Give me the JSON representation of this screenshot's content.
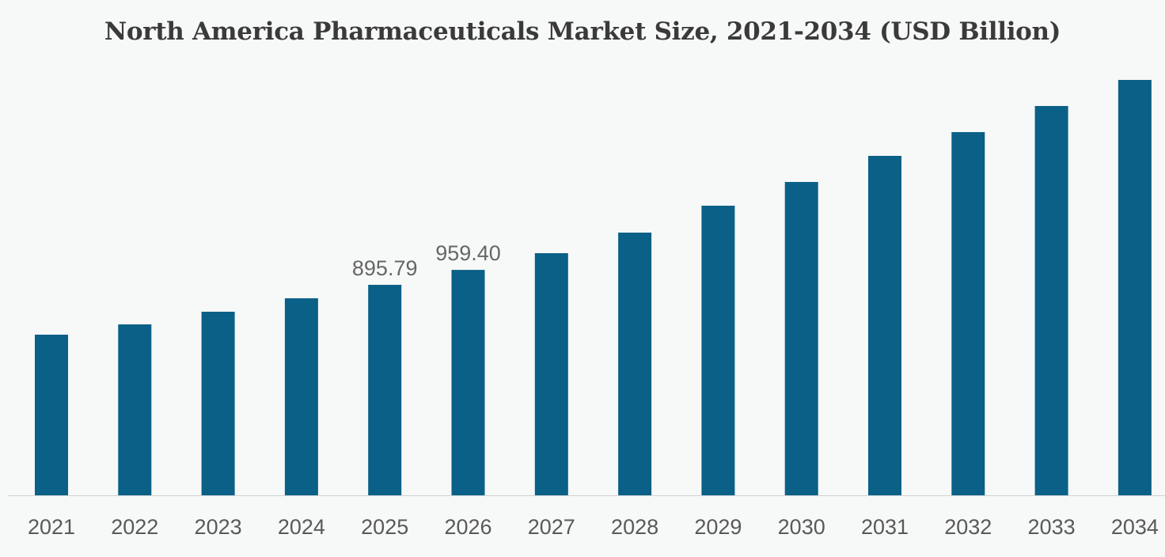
{
  "chart_data": {
    "type": "bar",
    "title": "North America Pharmaceuticals Market Size, 2021-2034 (USD Billion)",
    "xlabel": "",
    "ylabel": "",
    "categories": [
      "2021",
      "2022",
      "2023",
      "2024",
      "2025",
      "2026",
      "2027",
      "2028",
      "2029",
      "2030",
      "2031",
      "2032",
      "2033",
      "2034"
    ],
    "values": [
      683.6,
      727.4,
      781.3,
      838.5,
      895.79,
      959.4,
      1030.5,
      1118.1,
      1232.6,
      1333.6,
      1444.7,
      1545.8,
      1656.9,
      1768.0
    ],
    "data_labels": {
      "2025": "895.79",
      "2026": "959.40"
    },
    "ylim": [
      0,
      1800
    ],
    "grid": false,
    "legend": "none",
    "bar_color": "#0a6087"
  }
}
